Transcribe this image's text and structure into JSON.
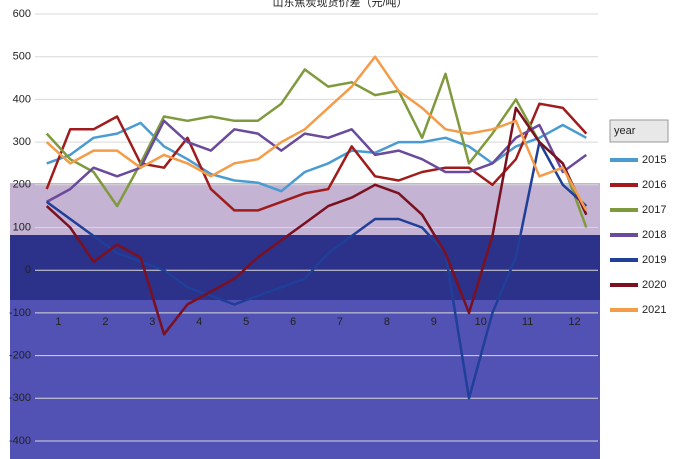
{
  "chart_data": {
    "type": "line",
    "title": "山东焦炭现货价差（元/吨）",
    "legend_title": "year",
    "categories": [
      "1",
      null,
      "2",
      null,
      "3",
      null,
      "4",
      null,
      "5",
      null,
      "6",
      null,
      "7",
      null,
      "8",
      null,
      "9",
      null,
      "10",
      null,
      "11",
      null,
      "12",
      null
    ],
    "ylim": [
      -400,
      600
    ],
    "yticks": [
      -400,
      -300,
      -200,
      -100,
      0,
      100,
      200,
      300,
      400,
      500,
      600
    ],
    "series": [
      {
        "name": "2015",
        "color": "#4a9bd1",
        "values": [
          250,
          270,
          310,
          320,
          345,
          290,
          260,
          225,
          210,
          205,
          185,
          230,
          250,
          280,
          275,
          300,
          300,
          310,
          290,
          250,
          290,
          310,
          340,
          310
        ]
      },
      {
        "name": "2016",
        "color": "#a01c1c",
        "values": [
          190,
          330,
          330,
          360,
          250,
          240,
          310,
          190,
          140,
          140,
          160,
          180,
          190,
          290,
          220,
          210,
          230,
          240,
          240,
          200,
          260,
          390,
          380,
          320
        ]
      },
      {
        "name": "2017",
        "color": "#7f9a3c",
        "values": [
          320,
          260,
          230,
          150,
          250,
          360,
          350,
          360,
          350,
          350,
          390,
          470,
          430,
          440,
          410,
          420,
          310,
          460,
          250,
          320,
          400,
          300,
          250,
          100
        ]
      },
      {
        "name": "2018",
        "color": "#6a4a9a",
        "values": [
          160,
          190,
          240,
          220,
          240,
          350,
          300,
          280,
          330,
          320,
          280,
          320,
          310,
          330,
          270,
          280,
          260,
          230,
          230,
          250,
          310,
          340,
          230,
          270
        ]
      },
      {
        "name": "2019",
        "color": "#1f3f99",
        "values": [
          160,
          120,
          80,
          40,
          20,
          0,
          -40,
          -60,
          -80,
          -60,
          -40,
          -20,
          40,
          80,
          120,
          120,
          100,
          40,
          -300,
          -100,
          30,
          300,
          200,
          150
        ]
      },
      {
        "name": "2020",
        "color": "#7a1020",
        "values": [
          150,
          100,
          20,
          60,
          30,
          -150,
          -80,
          -50,
          -20,
          30,
          70,
          110,
          150,
          170,
          200,
          180,
          130,
          40,
          -100,
          80,
          380,
          300,
          250,
          130
        ]
      },
      {
        "name": "2021",
        "color": "#f39c4a",
        "values": [
          300,
          250,
          280,
          280,
          240,
          270,
          250,
          220,
          250,
          260,
          300,
          330,
          380,
          430,
          500,
          420,
          380,
          330,
          320,
          330,
          350,
          220,
          240,
          140
        ]
      }
    ]
  }
}
